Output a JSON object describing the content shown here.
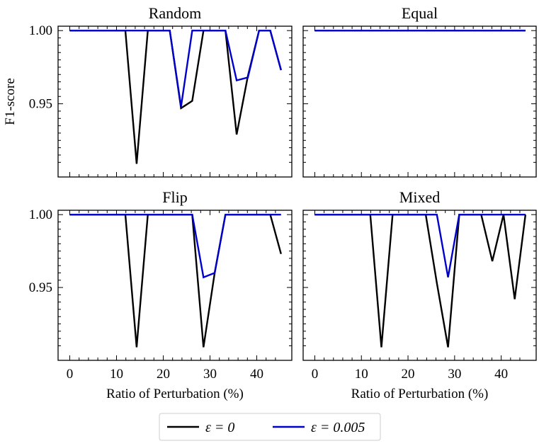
{
  "chart_data": [
    {
      "type": "line",
      "title": "Random",
      "xlabel": "",
      "ylabel": "F1-score",
      "xlim": [
        -2.5,
        47.5
      ],
      "ylim": [
        0.9,
        1.003
      ],
      "xticks": [],
      "yticks": [
        "1.00",
        "0.95"
      ],
      "series": [
        {
          "name": "ε = 0",
          "color": "#000000",
          "x": [
            0,
            2.4,
            4.8,
            7.1,
            9.5,
            11.9,
            14.3,
            16.7,
            19.0,
            21.4,
            23.8,
            26.2,
            28.6,
            31.0,
            33.3,
            35.7,
            38.1,
            40.5,
            42.9,
            45.2
          ],
          "y": [
            1.0,
            1.0,
            1.0,
            1.0,
            1.0,
            1.0,
            0.909,
            1.0,
            1.0,
            1.0,
            0.947,
            0.952,
            1.0,
            1.0,
            1.0,
            0.929,
            0.969,
            1.0,
            1.0,
            0.973
          ]
        },
        {
          "name": "ε = 0.005",
          "color": "#0000cc",
          "x": [
            0,
            2.4,
            4.8,
            7.1,
            9.5,
            11.9,
            14.3,
            16.7,
            19.0,
            21.4,
            23.8,
            26.2,
            28.6,
            31.0,
            33.3,
            35.7,
            38.1,
            40.5,
            42.9,
            45.2
          ],
          "y": [
            1.0,
            1.0,
            1.0,
            1.0,
            1.0,
            1.0,
            1.0,
            1.0,
            1.0,
            1.0,
            0.948,
            1.0,
            1.0,
            1.0,
            1.0,
            0.966,
            0.968,
            1.0,
            1.0,
            0.973
          ]
        }
      ]
    },
    {
      "type": "line",
      "title": "Equal",
      "xlabel": "",
      "ylabel": "",
      "xlim": [
        -2.5,
        47.5
      ],
      "ylim": [
        0.9,
        1.003
      ],
      "xticks": [],
      "yticks": [],
      "series": [
        {
          "name": "ε = 0",
          "color": "#000000",
          "x": [
            0,
            45.2
          ],
          "y": [
            1.0,
            1.0
          ]
        },
        {
          "name": "ε = 0.005",
          "color": "#0000cc",
          "x": [
            0,
            45.2
          ],
          "y": [
            1.0,
            1.0
          ]
        }
      ]
    },
    {
      "type": "line",
      "title": "Flip",
      "xlabel": "Ratio of Perturbation (%)",
      "ylabel": "",
      "xlim": [
        -2.5,
        47.5
      ],
      "ylim": [
        0.9,
        1.003
      ],
      "xticks": [
        "0",
        "10",
        "20",
        "30",
        "40"
      ],
      "yticks": [
        "1.00",
        "0.95"
      ],
      "series": [
        {
          "name": "ε = 0",
          "color": "#000000",
          "x": [
            0,
            2.4,
            4.8,
            7.1,
            9.5,
            11.9,
            14.3,
            16.7,
            19.0,
            21.4,
            23.8,
            26.2,
            28.6,
            31.0,
            33.3,
            35.7,
            38.1,
            40.5,
            42.9,
            45.2
          ],
          "y": [
            1.0,
            1.0,
            1.0,
            1.0,
            1.0,
            1.0,
            0.909,
            1.0,
            1.0,
            1.0,
            1.0,
            1.0,
            0.909,
            0.96,
            1.0,
            1.0,
            1.0,
            1.0,
            1.0,
            0.973
          ]
        },
        {
          "name": "ε = 0.005",
          "color": "#0000cc",
          "x": [
            0,
            2.4,
            4.8,
            7.1,
            9.5,
            11.9,
            14.3,
            16.7,
            19.0,
            21.4,
            23.8,
            26.2,
            28.6,
            31.0,
            33.3,
            35.7,
            38.1,
            40.5,
            42.9,
            45.2
          ],
          "y": [
            1.0,
            1.0,
            1.0,
            1.0,
            1.0,
            1.0,
            1.0,
            1.0,
            1.0,
            1.0,
            1.0,
            1.0,
            0.957,
            0.96,
            1.0,
            1.0,
            1.0,
            1.0,
            1.0,
            1.0
          ]
        }
      ]
    },
    {
      "type": "line",
      "title": "Mixed",
      "xlabel": "Ratio of Perturbation (%)",
      "ylabel": "",
      "xlim": [
        -2.5,
        47.5
      ],
      "ylim": [
        0.9,
        1.003
      ],
      "xticks": [
        "0",
        "10",
        "20",
        "30",
        "40"
      ],
      "yticks": [],
      "series": [
        {
          "name": "ε = 0",
          "color": "#000000",
          "x": [
            0,
            2.4,
            4.8,
            7.1,
            9.5,
            11.9,
            14.3,
            16.7,
            19.0,
            21.4,
            23.8,
            26.2,
            28.6,
            31.0,
            33.3,
            35.7,
            38.1,
            40.5,
            42.9,
            45.2
          ],
          "y": [
            1.0,
            1.0,
            1.0,
            1.0,
            1.0,
            1.0,
            0.909,
            1.0,
            1.0,
            1.0,
            1.0,
            0.953,
            0.909,
            1.0,
            1.0,
            1.0,
            0.968,
            1.0,
            0.942,
            1.0
          ]
        },
        {
          "name": "ε = 0.005",
          "color": "#0000cc",
          "x": [
            0,
            2.4,
            4.8,
            7.1,
            9.5,
            11.9,
            14.3,
            16.7,
            19.0,
            21.4,
            23.8,
            26.2,
            28.6,
            31.0,
            33.3,
            35.7,
            38.1,
            40.5,
            42.9,
            45.2
          ],
          "y": [
            1.0,
            1.0,
            1.0,
            1.0,
            1.0,
            1.0,
            1.0,
            1.0,
            1.0,
            1.0,
            1.0,
            1.0,
            0.957,
            1.0,
            1.0,
            1.0,
            1.0,
            1.0,
            1.0,
            1.0
          ]
        }
      ]
    }
  ],
  "legend": {
    "position": "bottom-center",
    "entries": [
      {
        "label": "ε = 0",
        "color": "#000000"
      },
      {
        "label": "ε = 0.005",
        "color": "#0000cc"
      }
    ]
  }
}
